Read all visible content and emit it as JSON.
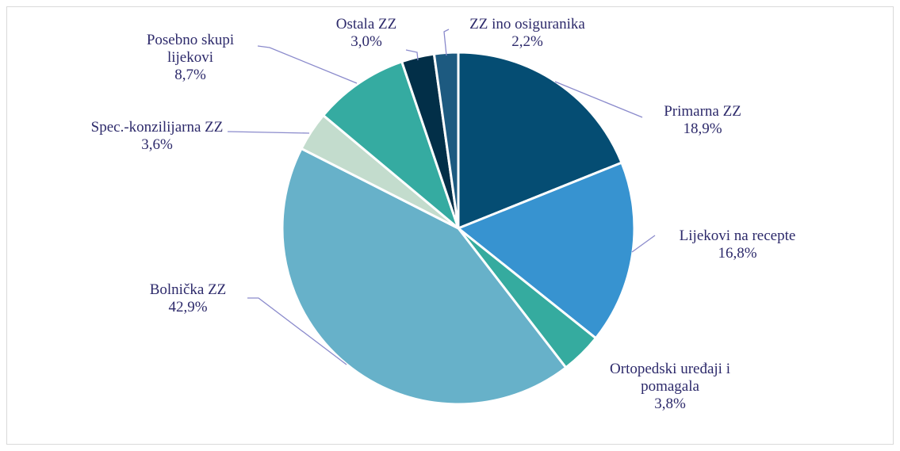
{
  "chart_data": {
    "type": "pie",
    "categories": [
      "Primarna ZZ",
      "Lijekovi na recepte",
      "Ortopedski uređaji i pomagala",
      "Bolnička ZZ",
      "Spec.-konzilijarna ZZ",
      "Posebno skupi lijekovi",
      "Ostala ZZ",
      "ZZ ino osiguranika"
    ],
    "values": [
      18.9,
      16.8,
      3.8,
      42.9,
      3.6,
      8.7,
      3.0,
      2.2
    ],
    "value_labels": [
      "18,9%",
      "16,8%",
      "3,8%",
      "42,9%",
      "3,6%",
      "8,7%",
      "3,0%",
      "2,2%"
    ],
    "colors": [
      "#054d73",
      "#3793d0",
      "#35ab9f",
      "#67b1c9",
      "#c3dccd",
      "#35aba1",
      "#022f48",
      "#1d5a80"
    ]
  }
}
